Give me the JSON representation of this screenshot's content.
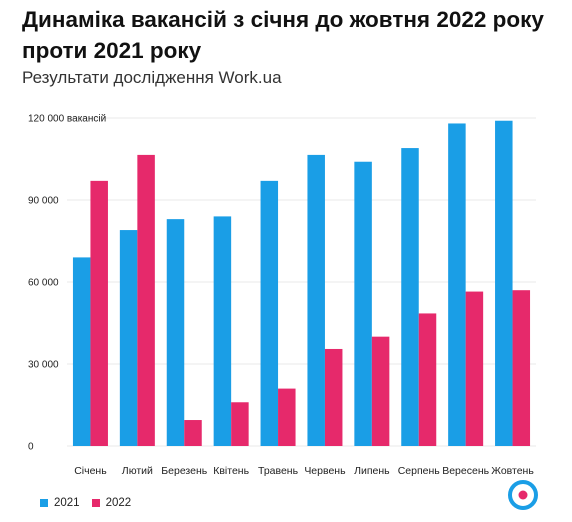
{
  "title": "Динаміка вакансій з січня до жовтня 2022 року проти 2021 року",
  "subtitle": "Результати дослідження Work.ua",
  "colors": {
    "series_2021": "#1a9ee6",
    "series_2022": "#e6296b",
    "grid": "#e8e8e8",
    "logo_blue": "#1a9ee6",
    "logo_pink": "#e6296b"
  },
  "legend": {
    "item_2021": "2021",
    "item_2022": "2022"
  },
  "logo": {
    "icon": "work-ua-logo-icon"
  },
  "chart_data": {
    "type": "bar",
    "title": "Динаміка вакансій з січня до жовтня 2022 року проти 2021 року",
    "subtitle": "Результати дослідження Work.ua",
    "categories": [
      "Січень",
      "Лютий",
      "Березень",
      "Квітень",
      "Травень",
      "Червень",
      "Липень",
      "Серпень",
      "Вересень",
      "Жовтень"
    ],
    "series": [
      {
        "name": "2021",
        "values": [
          69000,
          79000,
          83000,
          84000,
          97000,
          106500,
          104000,
          109000,
          118000,
          119000
        ]
      },
      {
        "name": "2022",
        "values": [
          97000,
          106500,
          9500,
          16000,
          21000,
          35500,
          40000,
          48500,
          56500,
          57000
        ]
      }
    ],
    "yticks": [
      "0",
      "30 000",
      "60 000",
      "90 000",
      "120 000 вакансій"
    ],
    "ytick_values": [
      0,
      30000,
      60000,
      90000,
      120000
    ],
    "ylim": [
      0,
      120000
    ],
    "grid": true,
    "legend_position": "bottom-left"
  }
}
